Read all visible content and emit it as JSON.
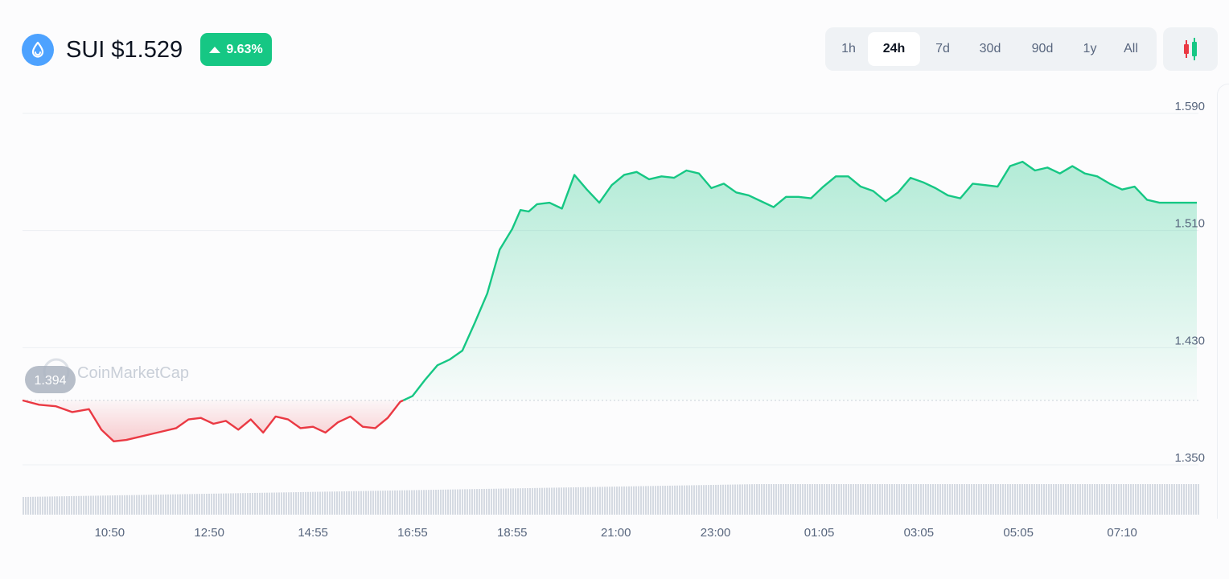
{
  "header": {
    "coin_title": "SUI $1.529",
    "change_pct": "9.63%",
    "logo_icon": "sui-droplet-icon",
    "ranges": [
      {
        "label": "1h",
        "active": false
      },
      {
        "label": "24h",
        "active": true
      },
      {
        "label": "7d",
        "active": false
      },
      {
        "label": "30d",
        "active": false
      },
      {
        "label": "90d",
        "active": false
      },
      {
        "label": "1y",
        "active": false
      },
      {
        "label": "All",
        "active": false
      }
    ],
    "chart_type_icon": "candlestick-icon"
  },
  "watermark": "CoinMarketCap",
  "colors": {
    "up": "#16c784",
    "down": "#ea3943",
    "logo": "#4da2ff"
  },
  "chart_data": {
    "type": "area",
    "baseline": 1.394,
    "baseline_label": "1.394",
    "ylim": [
      1.35,
      1.59
    ],
    "y_ticks": [
      "1.590",
      "1.510",
      "1.430",
      "1.350"
    ],
    "x_tick_labels": [
      "10:50",
      "12:50",
      "14:55",
      "16:55",
      "18:55",
      "21:00",
      "23:00",
      "01:05",
      "03:05",
      "05:05",
      "07:10"
    ],
    "grid": true,
    "series": [
      {
        "x": [
          "09:05",
          "09:25",
          "09:45",
          "10:05",
          "10:25",
          "10:40",
          "10:55",
          "11:10",
          "11:25",
          "11:40",
          "11:55",
          "12:10",
          "12:25",
          "12:40",
          "12:55",
          "13:10",
          "13:25",
          "13:40",
          "13:55",
          "14:10",
          "14:25",
          "14:40",
          "14:55",
          "15:10",
          "15:25",
          "15:40",
          "15:55",
          "16:10",
          "16:25",
          "16:40",
          "16:55",
          "17:10",
          "17:25",
          "17:40",
          "17:55",
          "18:10",
          "18:25",
          "18:40",
          "18:55",
          "19:05",
          "19:15",
          "19:25",
          "19:40",
          "19:55",
          "20:10",
          "20:25",
          "20:40",
          "20:55",
          "21:10",
          "21:25",
          "21:40",
          "21:55",
          "22:10",
          "22:25",
          "22:40",
          "22:55",
          "23:10",
          "23:25",
          "23:40",
          "23:55",
          "00:10",
          "00:25",
          "00:40",
          "00:55",
          "01:10",
          "01:25",
          "01:40",
          "01:55",
          "02:10",
          "02:25",
          "02:40",
          "02:55",
          "03:10",
          "03:25",
          "03:40",
          "03:55",
          "04:10",
          "04:25",
          "04:40",
          "04:55",
          "05:10",
          "05:25",
          "05:40",
          "05:55",
          "06:10",
          "06:25",
          "06:40",
          "06:55",
          "07:10",
          "07:25",
          "07:40",
          "07:55",
          "08:10",
          "08:25",
          "08:40"
        ],
        "values": [
          1.394,
          1.391,
          1.39,
          1.386,
          1.388,
          1.374,
          1.366,
          1.367,
          1.369,
          1.371,
          1.373,
          1.375,
          1.381,
          1.382,
          1.378,
          1.38,
          1.374,
          1.381,
          1.372,
          1.383,
          1.381,
          1.375,
          1.376,
          1.372,
          1.379,
          1.383,
          1.376,
          1.375,
          1.382,
          1.393,
          1.397,
          1.408,
          1.418,
          1.422,
          1.428,
          1.447,
          1.467,
          1.497,
          1.511,
          1.524,
          1.523,
          1.528,
          1.529,
          1.525,
          1.548,
          1.538,
          1.529,
          1.541,
          1.548,
          1.55,
          1.545,
          1.547,
          1.546,
          1.551,
          1.549,
          1.539,
          1.542,
          1.536,
          1.534,
          1.53,
          1.526,
          1.533,
          1.533,
          1.532,
          1.54,
          1.547,
          1.547,
          1.54,
          1.537,
          1.53,
          1.536,
          1.546,
          1.543,
          1.539,
          1.534,
          1.532,
          1.542,
          1.541,
          1.54,
          1.554,
          1.557,
          1.551,
          1.553,
          1.549,
          1.554,
          1.549,
          1.547,
          1.542,
          1.538,
          1.54,
          1.531,
          1.529,
          1.529,
          1.529,
          1.529
        ]
      }
    ]
  }
}
